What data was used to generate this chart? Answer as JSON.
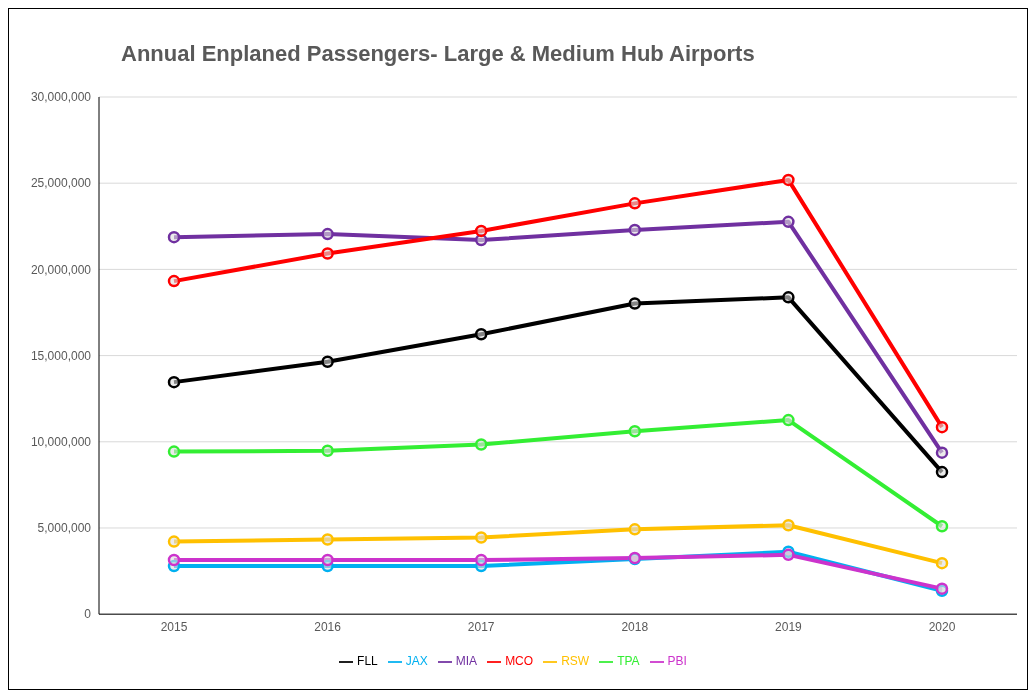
{
  "chart_data": {
    "type": "line",
    "title": "Annual Enplaned Passengers- Large & Medium Hub Airports",
    "categories": [
      "2015",
      "2016",
      "2017",
      "2018",
      "2019",
      "2020"
    ],
    "series": [
      {
        "name": "FLL",
        "color": "#000000",
        "values": [
          13460000,
          14640000,
          16240000,
          18020000,
          18380000,
          8240000
        ]
      },
      {
        "name": "JAX",
        "color": "#00b0f0",
        "values": [
          2790000,
          2790000,
          2790000,
          3200000,
          3620000,
          1360000
        ]
      },
      {
        "name": "MIA",
        "color": "#7030a0",
        "values": [
          21870000,
          22050000,
          21700000,
          22290000,
          22760000,
          9370000
        ]
      },
      {
        "name": "MCO",
        "color": "#ff0000",
        "values": [
          19320000,
          20920000,
          22230000,
          23830000,
          25190000,
          10850000
        ]
      },
      {
        "name": "RSW",
        "color": "#ffc000",
        "values": [
          4210000,
          4330000,
          4450000,
          4920000,
          5160000,
          2960000
        ]
      },
      {
        "name": "TPA",
        "color": "#33ee33",
        "values": [
          9430000,
          9480000,
          9840000,
          10610000,
          11260000,
          5100000
        ]
      },
      {
        "name": "PBI",
        "color": "#cc33cc",
        "values": [
          3140000,
          3140000,
          3140000,
          3260000,
          3440000,
          1480000
        ]
      }
    ],
    "ylim": [
      0,
      30000000
    ],
    "yticks": [
      0,
      {
        "value": 5000000,
        "label": "5,000,000"
      },
      {
        "value": 10000000,
        "label": "10,000,000"
      },
      {
        "value": 15000000,
        "label": "15,000,000"
      },
      {
        "value": 20000000,
        "label": "20,000,000"
      },
      {
        "value": 25000000,
        "label": "25,000,000"
      },
      {
        "value": 30000000,
        "label": "30,000,000"
      }
    ],
    "grid": "y",
    "legend": "bottom",
    "marker": "circle",
    "line_style": "solid"
  }
}
